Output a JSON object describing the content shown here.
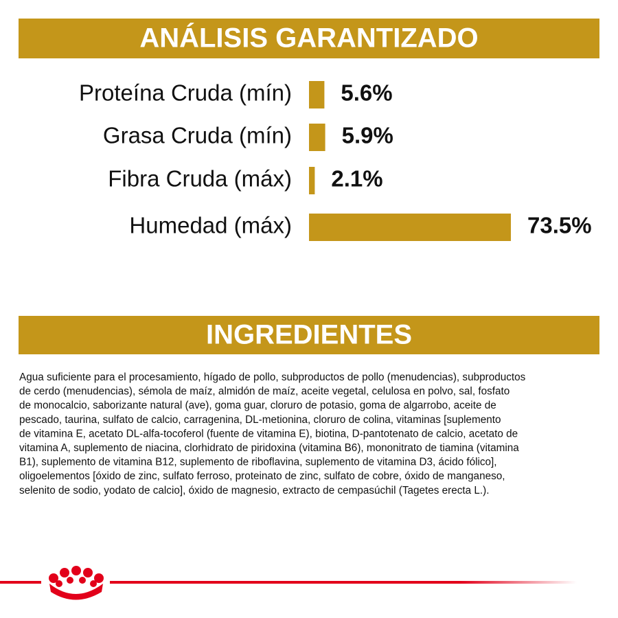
{
  "chart_data": {
    "type": "bar",
    "title": "ANÁLISIS GARANTIZADO",
    "categories": [
      "Proteína Cruda (mín)",
      "Grasa Cruda (mín)",
      "Fibra Cruda (máx)",
      "Humedad (máx)"
    ],
    "values": [
      5.6,
      5.9,
      2.1,
      73.5
    ],
    "value_labels": [
      "5.6%",
      "5.9%",
      "2.1%",
      "73.5%"
    ],
    "color": "#c4961a"
  },
  "ingredients": {
    "title": "INGREDIENTES",
    "lines": [
      "Agua suficiente para el procesamiento, hígado de pollo, subproductos de pollo (menudencias), subproductos",
      "de cerdo (menudencias), sémola de maíz, almidón de maíz, aceite vegetal, celulosa en polvo, sal, fosfato",
      "de monocalcio, saborizante natural (ave), goma guar, cloruro de potasio, goma de algarrobo, aceite de",
      "pescado, taurina, sulfato de calcio, carragenina, DL-metionina, cloruro de colina, vitaminas [suplemento",
      "de vitamina E, acetato DL-alfa-tocoferol (fuente de vitamina E), biotina, D-pantotenato de calcio, acetato de",
      "vitamina A, suplemento de niacina, clorhidrato de piridoxina (vitamina B6), mononitrato de tiamina (vitamina",
      "B1), suplemento de vitamina B12, suplemento de riboflavina, suplemento de vitamina D3, ácido fólico],",
      "oligoelementos [óxido de zinc, sulfato ferroso, proteinato de zinc, sulfato de cobre, óxido de manganeso,",
      "selenito de sodio, yodato de calcio], óxido de magnesio, extracto de cempasúchil (Tagetes erecta L.)."
    ]
  }
}
